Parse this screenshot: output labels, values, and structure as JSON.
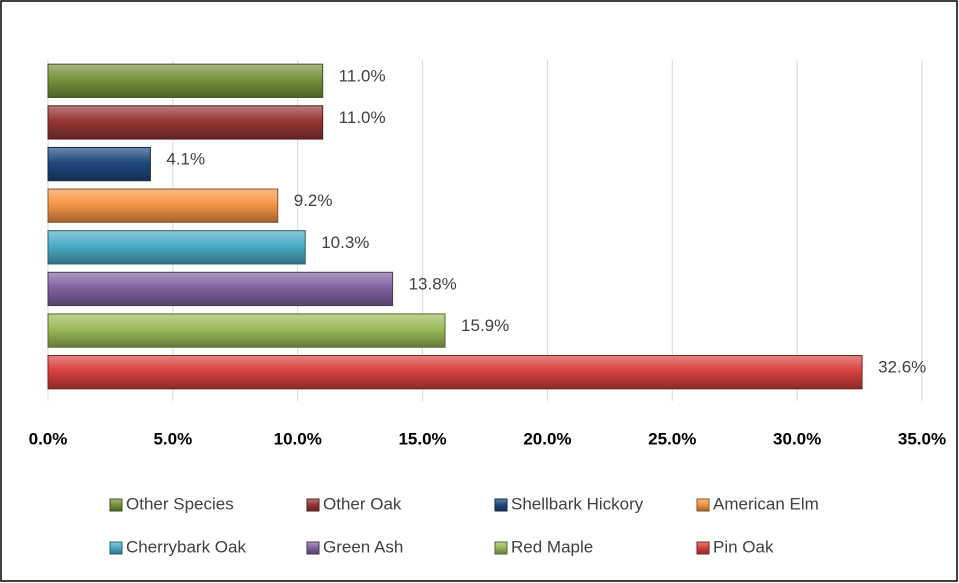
{
  "chart_data": {
    "type": "bar",
    "orientation": "horizontal",
    "series": [
      {
        "name": "Other Species",
        "color": "#77933c",
        "values": [
          11.0
        ],
        "value_labels": [
          "11.0%"
        ]
      },
      {
        "name": "Other Oak",
        "color": "#953735",
        "values": [
          11.0
        ],
        "value_labels": [
          "11.0%"
        ]
      },
      {
        "name": "Shellbark Hickory",
        "color": "#1f497d",
        "values": [
          4.1
        ],
        "value_labels": [
          "4.1%"
        ]
      },
      {
        "name": "American Elm",
        "color": "#f79646",
        "values": [
          9.2
        ],
        "value_labels": [
          "9.2%"
        ]
      },
      {
        "name": "Cherrybark Oak",
        "color": "#4bacc6",
        "values": [
          10.3
        ],
        "value_labels": [
          "10.3%"
        ]
      },
      {
        "name": "Green Ash",
        "color": "#8064a2",
        "values": [
          13.8
        ],
        "value_labels": [
          "13.8%"
        ]
      },
      {
        "name": "Red Maple",
        "color": "#9bbb59",
        "values": [
          15.9
        ],
        "value_labels": [
          "15.9%"
        ]
      },
      {
        "name": "Pin Oak",
        "color": "#d9413f",
        "values": [
          32.6
        ],
        "value_labels": [
          "32.6%"
        ]
      }
    ],
    "xlim": [
      0,
      35
    ],
    "xticks": [
      {
        "value": 0,
        "label": "0.0%"
      },
      {
        "value": 5,
        "label": "5.0%"
      },
      {
        "value": 10,
        "label": "10.0%"
      },
      {
        "value": 15,
        "label": "15.0%"
      },
      {
        "value": 20,
        "label": "20.0%"
      },
      {
        "value": 25,
        "label": "25.0%"
      },
      {
        "value": 30,
        "label": "30.0%"
      },
      {
        "value": 35,
        "label": "35.0%"
      }
    ],
    "grid": true,
    "legend": "bottom"
  }
}
